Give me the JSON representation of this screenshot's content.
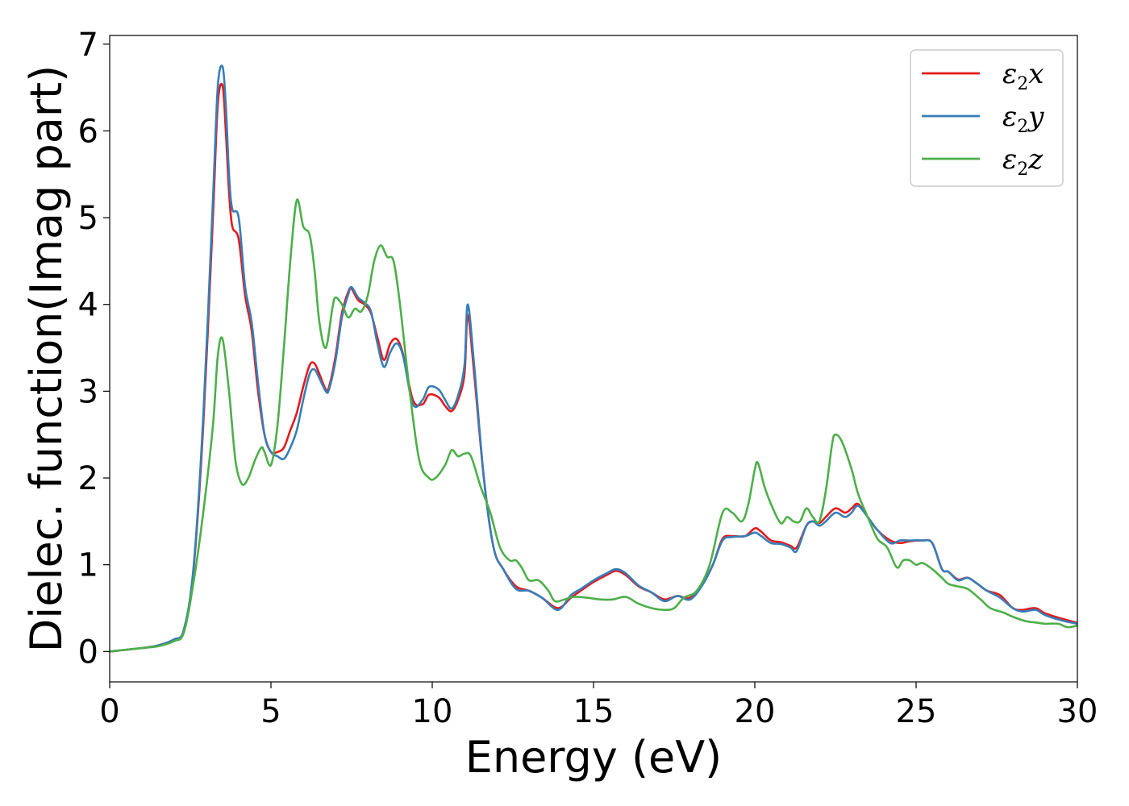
{
  "chart_data": {
    "type": "line",
    "xlabel": "Energy (eV)",
    "ylabel": "Dielec. function(Imag part)",
    "xlim": [
      0,
      30
    ],
    "ylim": [
      -0.35,
      7.1
    ],
    "xticks": [
      0,
      5,
      10,
      15,
      20,
      25,
      30
    ],
    "yticks": [
      0,
      1,
      2,
      3,
      4,
      5,
      6,
      7
    ],
    "grid": false,
    "legend_position": "top-right",
    "series": [
      {
        "name": "ε₂x",
        "legend": {
          "base": "ε",
          "sub": "2",
          "suffix": "x"
        },
        "color": "#e41a1c",
        "x": [
          0,
          1,
          1.5,
          2,
          2.3,
          2.6,
          2.9,
          3.2,
          3.35,
          3.5,
          3.6,
          3.7,
          3.8,
          4.0,
          4.2,
          4.4,
          4.6,
          4.8,
          5.0,
          5.2,
          5.4,
          5.6,
          5.8,
          6.0,
          6.2,
          6.35,
          6.5,
          6.7,
          6.8,
          7.0,
          7.2,
          7.4,
          7.5,
          7.7,
          7.9,
          8.1,
          8.3,
          8.5,
          8.7,
          8.9,
          9.1,
          9.4,
          9.7,
          9.9,
          10.2,
          10.4,
          10.6,
          10.8,
          11.0,
          11.1,
          11.3,
          11.6,
          11.9,
          12.2,
          12.6,
          13.0,
          13.4,
          13.9,
          14.3,
          14.6,
          15.0,
          15.4,
          15.7,
          16.0,
          16.4,
          16.8,
          17.2,
          17.6,
          18.0,
          18.4,
          18.7,
          19.0,
          19.3,
          19.7,
          20.0,
          20.2,
          20.5,
          20.8,
          21.1,
          21.3,
          21.6,
          21.8,
          22.0,
          22.2,
          22.5,
          22.8,
          23.0,
          23.2,
          23.5,
          23.8,
          24.2,
          24.5,
          24.8,
          25.2,
          25.5,
          25.8,
          26.0,
          26.3,
          26.6,
          26.9,
          27.2,
          27.6,
          28.0,
          28.3,
          28.7,
          29.0,
          29.5,
          30.0
        ],
        "values": [
          0,
          0.04,
          0.07,
          0.14,
          0.25,
          0.95,
          2.6,
          5.0,
          6.3,
          6.52,
          6.0,
          5.3,
          4.9,
          4.75,
          4.1,
          3.7,
          3.0,
          2.5,
          2.3,
          2.3,
          2.35,
          2.55,
          2.75,
          3.05,
          3.3,
          3.32,
          3.2,
          3.02,
          3.05,
          3.4,
          3.9,
          4.15,
          4.18,
          4.05,
          4.0,
          3.9,
          3.62,
          3.36,
          3.55,
          3.6,
          3.42,
          2.9,
          2.85,
          2.96,
          2.93,
          2.83,
          2.77,
          2.9,
          3.2,
          3.88,
          3.2,
          2.0,
          1.2,
          0.95,
          0.75,
          0.7,
          0.62,
          0.5,
          0.62,
          0.7,
          0.8,
          0.88,
          0.93,
          0.88,
          0.75,
          0.68,
          0.6,
          0.64,
          0.62,
          0.8,
          1.0,
          1.3,
          1.33,
          1.33,
          1.42,
          1.38,
          1.28,
          1.26,
          1.22,
          1.2,
          1.45,
          1.5,
          1.48,
          1.55,
          1.65,
          1.6,
          1.65,
          1.7,
          1.55,
          1.4,
          1.28,
          1.25,
          1.27,
          1.28,
          1.25,
          0.95,
          0.92,
          0.83,
          0.85,
          0.78,
          0.7,
          0.65,
          0.5,
          0.48,
          0.5,
          0.44,
          0.38,
          0.33
        ]
      },
      {
        "name": "ε₂y",
        "legend": {
          "base": "ε",
          "sub": "2",
          "suffix": "y"
        },
        "color": "#377eb8",
        "x": [
          0,
          1,
          1.5,
          2,
          2.3,
          2.6,
          2.9,
          3.2,
          3.35,
          3.5,
          3.6,
          3.7,
          3.8,
          4.0,
          4.2,
          4.4,
          4.6,
          4.8,
          5.0,
          5.2,
          5.4,
          5.6,
          5.8,
          6.0,
          6.2,
          6.35,
          6.5,
          6.7,
          6.8,
          7.0,
          7.2,
          7.4,
          7.5,
          7.7,
          7.9,
          8.1,
          8.3,
          8.5,
          8.7,
          8.9,
          9.1,
          9.4,
          9.7,
          9.9,
          10.2,
          10.4,
          10.6,
          10.8,
          11.0,
          11.1,
          11.3,
          11.6,
          11.9,
          12.2,
          12.6,
          13.0,
          13.4,
          13.9,
          14.3,
          14.6,
          15.0,
          15.4,
          15.7,
          16.0,
          16.4,
          16.8,
          17.2,
          17.6,
          18.0,
          18.4,
          18.7,
          19.0,
          19.3,
          19.7,
          20.0,
          20.2,
          20.5,
          20.8,
          21.1,
          21.3,
          21.6,
          21.8,
          22.0,
          22.2,
          22.5,
          22.8,
          23.0,
          23.2,
          23.5,
          23.8,
          24.2,
          24.5,
          24.8,
          25.2,
          25.5,
          25.8,
          26.0,
          26.3,
          26.6,
          26.9,
          27.2,
          27.6,
          28.0,
          28.3,
          28.7,
          29.0,
          29.5,
          30.0
        ],
        "values": [
          0,
          0.04,
          0.07,
          0.14,
          0.25,
          0.97,
          2.7,
          5.2,
          6.5,
          6.74,
          6.3,
          5.5,
          5.1,
          5.0,
          4.2,
          3.8,
          3.1,
          2.5,
          2.3,
          2.25,
          2.22,
          2.35,
          2.55,
          2.9,
          3.2,
          3.25,
          3.15,
          3.0,
          3.02,
          3.35,
          3.85,
          4.12,
          4.2,
          4.08,
          4.02,
          3.92,
          3.55,
          3.28,
          3.45,
          3.55,
          3.4,
          2.85,
          2.9,
          3.05,
          3.02,
          2.9,
          2.8,
          2.95,
          3.3,
          4.0,
          3.3,
          2.0,
          1.2,
          0.95,
          0.72,
          0.7,
          0.62,
          0.48,
          0.65,
          0.72,
          0.82,
          0.9,
          0.95,
          0.9,
          0.76,
          0.68,
          0.58,
          0.64,
          0.6,
          0.78,
          1.0,
          1.28,
          1.32,
          1.33,
          1.37,
          1.33,
          1.25,
          1.24,
          1.2,
          1.16,
          1.45,
          1.5,
          1.45,
          1.5,
          1.6,
          1.55,
          1.6,
          1.68,
          1.55,
          1.4,
          1.25,
          1.28,
          1.28,
          1.28,
          1.25,
          0.95,
          0.92,
          0.82,
          0.85,
          0.78,
          0.7,
          0.62,
          0.5,
          0.46,
          0.48,
          0.42,
          0.36,
          0.32
        ]
      },
      {
        "name": "ε₂z",
        "legend": {
          "base": "ε",
          "sub": "2",
          "suffix": "z"
        },
        "color": "#4daf4a",
        "x": [
          0,
          1,
          1.5,
          2,
          2.3,
          2.6,
          2.9,
          3.2,
          3.35,
          3.5,
          3.7,
          3.9,
          4.1,
          4.3,
          4.5,
          4.7,
          4.8,
          5.0,
          5.2,
          5.4,
          5.6,
          5.8,
          6.0,
          6.2,
          6.35,
          6.5,
          6.7,
          6.9,
          7.0,
          7.2,
          7.4,
          7.6,
          7.8,
          8.0,
          8.2,
          8.4,
          8.6,
          8.8,
          9.0,
          9.3,
          9.6,
          9.9,
          10.1,
          10.4,
          10.6,
          10.8,
          11.0,
          11.2,
          11.5,
          11.8,
          12.1,
          12.4,
          12.6,
          12.8,
          13.0,
          13.3,
          13.6,
          13.8,
          14.1,
          14.4,
          14.8,
          15.2,
          15.6,
          16.0,
          16.4,
          16.8,
          17.2,
          17.5,
          17.8,
          18.2,
          18.6,
          19.0,
          19.3,
          19.6,
          19.8,
          20.0,
          20.1,
          20.3,
          20.5,
          20.8,
          21.0,
          21.2,
          21.4,
          21.6,
          21.8,
          22.0,
          22.2,
          22.4,
          22.5,
          22.7,
          23.0,
          23.2,
          23.5,
          23.8,
          24.1,
          24.4,
          24.6,
          24.8,
          25.0,
          25.2,
          25.5,
          25.8,
          26.0,
          26.3,
          26.6,
          27.0,
          27.3,
          27.7,
          28.0,
          28.4,
          28.8,
          29.0,
          29.4,
          29.7,
          30.0
        ],
        "values": [
          0,
          0.04,
          0.06,
          0.12,
          0.22,
          0.8,
          1.6,
          2.6,
          3.4,
          3.6,
          3.0,
          2.2,
          1.93,
          2.0,
          2.2,
          2.35,
          2.3,
          2.15,
          2.6,
          3.5,
          4.5,
          5.2,
          4.9,
          4.8,
          4.4,
          3.8,
          3.5,
          3.95,
          4.08,
          4.0,
          3.85,
          3.95,
          3.92,
          4.1,
          4.5,
          4.68,
          4.55,
          4.5,
          4.0,
          3.0,
          2.2,
          2.0,
          2.0,
          2.15,
          2.32,
          2.25,
          2.28,
          2.25,
          1.9,
          1.6,
          1.2,
          1.05,
          1.05,
          0.95,
          0.82,
          0.82,
          0.7,
          0.58,
          0.6,
          0.63,
          0.62,
          0.6,
          0.6,
          0.63,
          0.55,
          0.5,
          0.48,
          0.5,
          0.62,
          0.7,
          1.0,
          1.6,
          1.6,
          1.5,
          1.7,
          2.1,
          2.17,
          1.9,
          1.7,
          1.48,
          1.55,
          1.5,
          1.5,
          1.65,
          1.55,
          1.5,
          1.85,
          2.4,
          2.5,
          2.42,
          2.1,
          1.82,
          1.55,
          1.3,
          1.2,
          0.97,
          1.05,
          1.05,
          1.0,
          1.02,
          0.95,
          0.85,
          0.78,
          0.75,
          0.72,
          0.6,
          0.5,
          0.45,
          0.4,
          0.35,
          0.33,
          0.32,
          0.32,
          0.28,
          0.3
        ]
      }
    ]
  }
}
